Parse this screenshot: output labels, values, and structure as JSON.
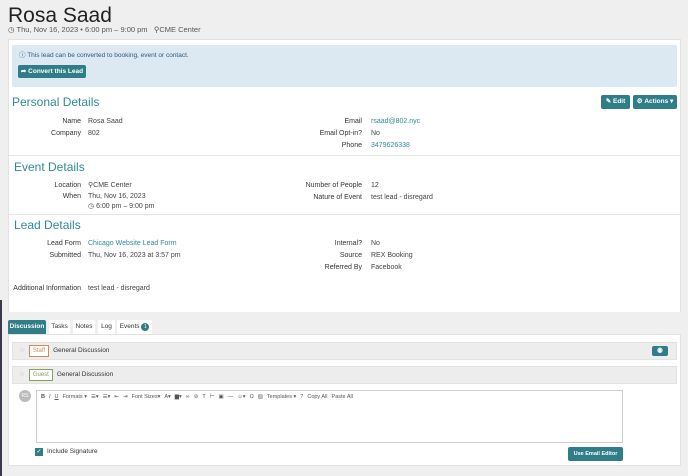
{
  "header": {
    "title": "Rosa Saad",
    "datetime": "Thu, Nov 16, 2023 • 6:00 pm – 9:00 pm",
    "location": "CME Center"
  },
  "alert": {
    "message": "This lead can be converted to booking, event or contact.",
    "convert_label": "Convert this Lead"
  },
  "actions": {
    "edit": "Edit",
    "actions": "Actions"
  },
  "personal": {
    "title": "Personal Details",
    "name_label": "Name",
    "name": "Rosa Saad",
    "company_label": "Company",
    "company": "802",
    "email_label": "Email",
    "email": "rsaad@802.nyc",
    "optin_label": "Email Opt-in?",
    "optin": "No",
    "phone_label": "Phone",
    "phone": "3479626338"
  },
  "event": {
    "title": "Event Details",
    "location_label": "Location",
    "location": "CME Center",
    "when_label": "When",
    "date": "Thu, Nov 16, 2023",
    "time": "6:00 pm – 9:00 pm",
    "people_label": "Number of People",
    "people": "12",
    "nature_label": "Nature of Event",
    "nature": "test lead - disregard"
  },
  "lead": {
    "title": "Lead Details",
    "form_label": "Lead Form",
    "form": "Chicago Website Lead Form",
    "submitted_label": "Submitted",
    "submitted": "Thu, Nov 16, 2023 at 3:57 pm",
    "internal_label": "Internal?",
    "internal": "No",
    "source_label": "Source",
    "source": "REX Booking",
    "referred_label": "Referred By",
    "referred": "Facebook",
    "addl_label": "Additional Information",
    "addl": "test lead - disregard"
  },
  "tabs": [
    {
      "label": "Discussion"
    },
    {
      "label": "Tasks"
    },
    {
      "label": "Notes"
    },
    {
      "label": "Log"
    },
    {
      "label": "Events",
      "badge": "1"
    }
  ],
  "discussions": [
    {
      "tag": "Staff",
      "title": "General Discussion",
      "color": "#d08a5a"
    },
    {
      "tag": "Guest",
      "title": "General Discussion",
      "color": "#8aa060"
    }
  ],
  "editor": {
    "avatar": "RS",
    "formats": "Formats",
    "font_sizes": "Font Sizes",
    "templates": "Templates",
    "copy_all": "Copy All",
    "paste_all": "Paste All",
    "include_signature": "Include Signature",
    "use_email_editor": "Use Email Editor"
  },
  "colors": {
    "accent": "#2e7d87",
    "alert_bg": "#dce9f3"
  }
}
